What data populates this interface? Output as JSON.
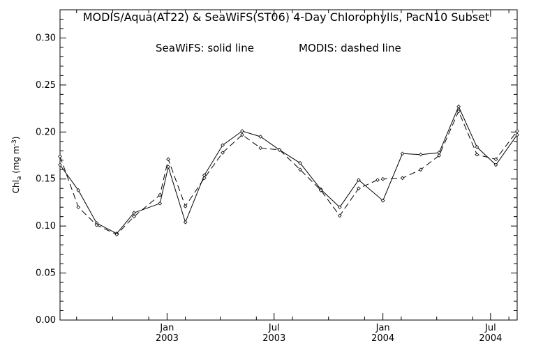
{
  "chart_data": {
    "type": "line",
    "title": "MODIS/Aqua(AT22) & SeaWiFS(ST06) 4-Day Chlorophylls, PacN10 Subset",
    "annotation_left": "SeaWiFS: solid line",
    "annotation_right": "MODIS: dashed line",
    "ylabel": "Chl_a (mg m^-3)",
    "ylabel_parts": {
      "base": "Chl",
      "sub": "a",
      "mid": " (mg m",
      "sup": "-3",
      "end": ")"
    },
    "ylim": [
      0.0,
      0.33
    ],
    "yticks": [
      0.0,
      0.05,
      0.1,
      0.15,
      0.2,
      0.25,
      0.3
    ],
    "ytick_labels": [
      "0.00",
      "0.05",
      "0.10",
      "0.15",
      "0.20",
      "0.25",
      "0.30"
    ],
    "xlim": [
      "2002-07-04",
      "2004-08-15"
    ],
    "xticks": [
      {
        "date": "2003-01-01",
        "month": "Jan",
        "year": "2003"
      },
      {
        "date": "2003-07-01",
        "month": "Jul",
        "year": "2003"
      },
      {
        "date": "2004-01-01",
        "month": "Jan",
        "year": "2004"
      },
      {
        "date": "2004-07-01",
        "month": "Jul",
        "year": "2004"
      }
    ],
    "minor_xticks": [
      "2002-08-01",
      "2002-10-01",
      "2002-12-01",
      "2003-02-01",
      "2003-04-01",
      "2003-06-01",
      "2003-08-01",
      "2003-10-01",
      "2003-12-01",
      "2004-02-01",
      "2004-04-01",
      "2004-06-01",
      "2004-08-01"
    ],
    "series": [
      {
        "style": "solid",
        "points": [
          [
            "2002-07-04",
            0.165
          ],
          [
            "2002-08-04",
            0.138
          ],
          [
            "2002-09-04",
            0.103
          ],
          [
            "2002-10-08",
            0.092
          ],
          [
            "2002-11-06",
            0.114
          ],
          [
            "2002-12-20",
            0.124
          ],
          [
            "2003-01-03",
            0.163
          ],
          [
            "2003-02-01",
            0.104
          ],
          [
            "2003-03-05",
            0.154
          ],
          [
            "2003-04-05",
            0.186
          ],
          [
            "2003-05-08",
            0.201
          ],
          [
            "2003-06-08",
            0.195
          ],
          [
            "2003-07-10",
            0.181
          ],
          [
            "2003-08-14",
            0.167
          ],
          [
            "2003-09-18",
            0.139
          ],
          [
            "2003-10-20",
            0.12
          ],
          [
            "2003-11-21",
            0.149
          ],
          [
            "2004-01-01",
            0.127
          ],
          [
            "2004-02-03",
            0.177
          ],
          [
            "2004-03-05",
            0.176
          ],
          [
            "2004-04-05",
            0.178
          ],
          [
            "2004-05-08",
            0.227
          ],
          [
            "2004-06-08",
            0.184
          ],
          [
            "2004-07-10",
            0.165
          ],
          [
            "2004-08-15",
            0.197
          ]
        ]
      },
      {
        "style": "dashed",
        "points": [
          [
            "2002-07-04",
            0.174
          ],
          [
            "2002-08-04",
            0.12
          ],
          [
            "2002-09-04",
            0.101
          ],
          [
            "2002-10-08",
            0.091
          ],
          [
            "2002-11-06",
            0.11
          ],
          [
            "2002-12-20",
            0.133
          ],
          [
            "2003-01-03",
            0.171
          ],
          [
            "2003-02-01",
            0.121
          ],
          [
            "2003-03-05",
            0.151
          ],
          [
            "2003-04-05",
            0.178
          ],
          [
            "2003-05-08",
            0.197
          ],
          [
            "2003-06-08",
            0.183
          ],
          [
            "2003-07-10",
            0.181
          ],
          [
            "2003-08-14",
            0.16
          ],
          [
            "2003-09-18",
            0.138
          ],
          [
            "2003-10-20",
            0.111
          ],
          [
            "2003-11-21",
            0.14
          ],
          [
            "2003-12-23",
            0.149
          ],
          [
            "2004-01-01",
            0.15
          ],
          [
            "2004-02-03",
            0.151
          ],
          [
            "2004-03-05",
            0.16
          ],
          [
            "2004-04-05",
            0.175
          ],
          [
            "2004-05-08",
            0.222
          ],
          [
            "2004-06-08",
            0.176
          ],
          [
            "2004-07-10",
            0.171
          ],
          [
            "2004-08-15",
            0.201
          ]
        ]
      }
    ],
    "grid": false,
    "marker": "diamond"
  }
}
